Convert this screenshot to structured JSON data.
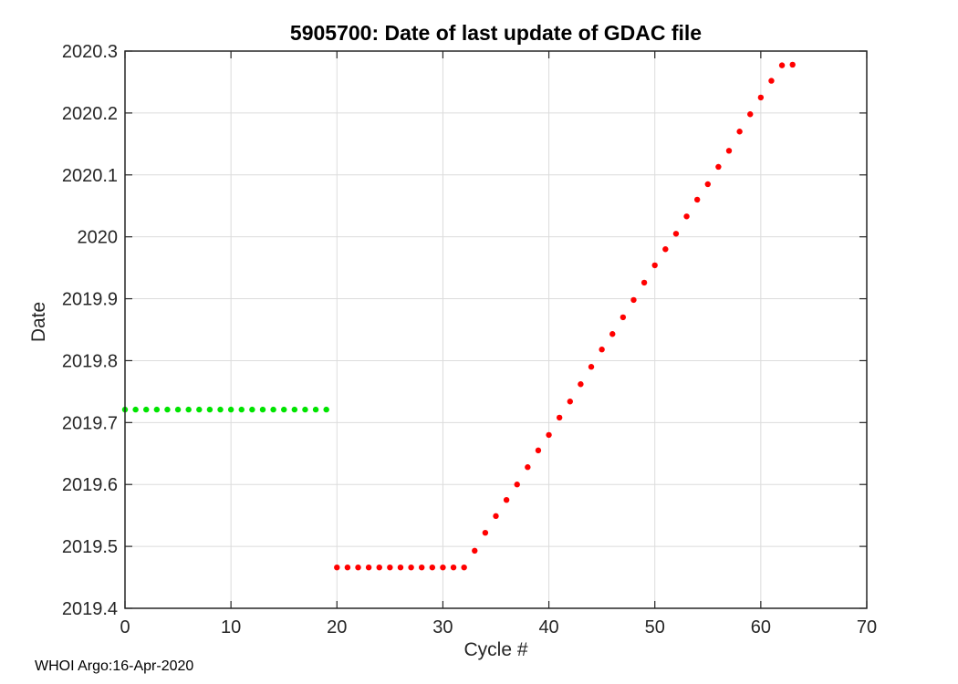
{
  "footer": {
    "text": "WHOI Argo:16-Apr-2020"
  },
  "chart_data": {
    "type": "scatter",
    "title": "5905700: Date of last update of GDAC file",
    "xlabel": "Cycle #",
    "ylabel": "Date",
    "xlim": [
      0,
      70
    ],
    "ylim": [
      2019.4,
      2020.3
    ],
    "grid": true,
    "legend": false,
    "xticks": {
      "values": [
        0,
        10,
        20,
        30,
        40,
        50,
        60,
        70
      ],
      "labels": [
        "0",
        "10",
        "20",
        "30",
        "40",
        "50",
        "60",
        "70"
      ]
    },
    "yticks": {
      "values": [
        2019.4,
        2019.5,
        2019.6,
        2019.7,
        2019.8,
        2019.9,
        2020,
        2020.1,
        2020.2,
        2020.3
      ],
      "labels": [
        "2019.4",
        "2019.5",
        "2019.6",
        "2019.7",
        "2019.8",
        "2019.9",
        "2020",
        "2020.1",
        "2020.2",
        "2020.3"
      ]
    },
    "colors": {
      "axis": "#262626",
      "grid": "#dcdcdc",
      "green": "#00e400",
      "red": "#ff0000"
    },
    "series": [
      {
        "name": "green-dots",
        "color": "#00e400",
        "marker": "point",
        "points": [
          [
            0,
            2019.721
          ],
          [
            1,
            2019.721
          ],
          [
            2,
            2019.721
          ],
          [
            3,
            2019.721
          ],
          [
            4,
            2019.721
          ],
          [
            5,
            2019.721
          ],
          [
            6,
            2019.721
          ],
          [
            7,
            2019.721
          ],
          [
            8,
            2019.721
          ],
          [
            9,
            2019.721
          ],
          [
            10,
            2019.721
          ],
          [
            11,
            2019.721
          ],
          [
            12,
            2019.721
          ],
          [
            13,
            2019.721
          ],
          [
            14,
            2019.721
          ],
          [
            15,
            2019.721
          ],
          [
            16,
            2019.721
          ],
          [
            17,
            2019.721
          ],
          [
            18,
            2019.721
          ],
          [
            19,
            2019.721
          ]
        ]
      },
      {
        "name": "red-dots",
        "color": "#ff0000",
        "marker": "point",
        "points": [
          [
            20,
            2019.466
          ],
          [
            21,
            2019.466
          ],
          [
            22,
            2019.466
          ],
          [
            23,
            2019.466
          ],
          [
            24,
            2019.466
          ],
          [
            25,
            2019.466
          ],
          [
            26,
            2019.466
          ],
          [
            27,
            2019.466
          ],
          [
            28,
            2019.466
          ],
          [
            29,
            2019.466
          ],
          [
            30,
            2019.466
          ],
          [
            31,
            2019.466
          ],
          [
            32,
            2019.466
          ],
          [
            33,
            2019.493
          ],
          [
            34,
            2019.522
          ],
          [
            35,
            2019.549
          ],
          [
            36,
            2019.575
          ],
          [
            37,
            2019.6
          ],
          [
            38,
            2019.628
          ],
          [
            39,
            2019.655
          ],
          [
            40,
            2019.68
          ],
          [
            41,
            2019.708
          ],
          [
            42,
            2019.734
          ],
          [
            43,
            2019.762
          ],
          [
            44,
            2019.79
          ],
          [
            45,
            2019.818
          ],
          [
            46,
            2019.843
          ],
          [
            47,
            2019.87
          ],
          [
            48,
            2019.898
          ],
          [
            49,
            2019.926
          ],
          [
            50,
            2019.954
          ],
          [
            51,
            2019.98
          ],
          [
            52,
            2020.005
          ],
          [
            53,
            2020.033
          ],
          [
            54,
            2020.06
          ],
          [
            55,
            2020.085
          ],
          [
            56,
            2020.113
          ],
          [
            57,
            2020.139
          ],
          [
            58,
            2020.17
          ],
          [
            59,
            2020.198
          ],
          [
            60,
            2020.225
          ],
          [
            61,
            2020.252
          ],
          [
            62,
            2020.277
          ],
          [
            63,
            2020.278
          ]
        ]
      }
    ]
  }
}
